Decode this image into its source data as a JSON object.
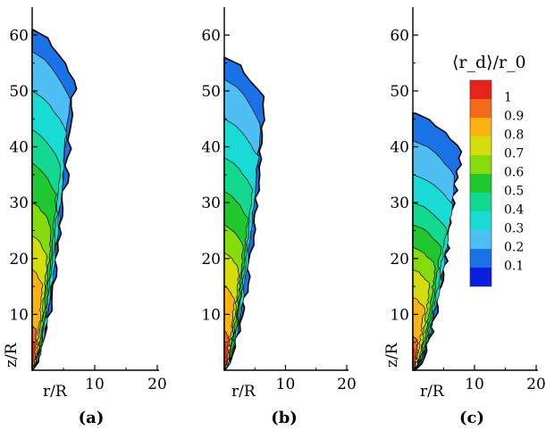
{
  "chart_data": {
    "type": "heatmap",
    "colorbar": {
      "title": "⟨r_d⟩/r_0",
      "levels": [
        1,
        0.9,
        0.8,
        0.7,
        0.6,
        0.5,
        0.4,
        0.3,
        0.2,
        0.1
      ],
      "level_labels": [
        "1",
        "0.9",
        "0.8",
        "0.7",
        "0.6",
        "0.5",
        "0.4",
        "0.3",
        "0.2",
        "0.1"
      ],
      "colors": [
        "#e8231a",
        "#f46a1c",
        "#f9b20f",
        "#d5dc0b",
        "#86dc0b",
        "#1fc82e",
        "#13d890",
        "#19dbd6",
        "#4dbff5",
        "#1a72e6",
        "#0a1ee0"
      ]
    },
    "panels": [
      {
        "caption": "(a)",
        "xlabel": "r/R",
        "ylabel": "z/R",
        "x_ticks": [
          "10",
          "20"
        ],
        "y_ticks": [
          "10",
          "20",
          "30",
          "40",
          "50",
          "60"
        ],
        "xlim": [
          0,
          20
        ],
        "ylim": [
          0,
          65
        ],
        "jet_tip_z": 61,
        "contour_boundaries": [
          {
            "level": 0.9,
            "z_top": 8,
            "r_max": 0.8
          },
          {
            "level": 0.8,
            "z_top": 18,
            "r_max": 1.8
          },
          {
            "level": 0.7,
            "z_top": 24,
            "r_max": 2.6
          },
          {
            "level": 0.6,
            "z_top": 30,
            "r_max": 3.4
          },
          {
            "level": 0.5,
            "z_top": 37,
            "r_max": 4.2
          },
          {
            "level": 0.4,
            "z_top": 43,
            "r_max": 5.0
          },
          {
            "level": 0.3,
            "z_top": 50,
            "r_max": 6.0
          },
          {
            "level": 0.2,
            "z_top": 57,
            "r_max": 6.5
          }
        ]
      },
      {
        "caption": "(b)",
        "xlabel": "r/R",
        "ylabel": "",
        "x_ticks": [
          "10",
          "20"
        ],
        "y_ticks": [
          "10",
          "20",
          "30",
          "40",
          "50",
          "60"
        ],
        "xlim": [
          0,
          20
        ],
        "ylim": [
          0,
          65
        ],
        "jet_tip_z": 56,
        "contour_boundaries": [
          {
            "level": 0.9,
            "z_top": 7,
            "r_max": 0.8
          },
          {
            "level": 0.8,
            "z_top": 15,
            "r_max": 1.8
          },
          {
            "level": 0.7,
            "z_top": 21,
            "r_max": 2.6
          },
          {
            "level": 0.6,
            "z_top": 26,
            "r_max": 3.4
          },
          {
            "level": 0.5,
            "z_top": 32,
            "r_max": 4.2
          },
          {
            "level": 0.4,
            "z_top": 38,
            "r_max": 5.0
          },
          {
            "level": 0.3,
            "z_top": 45,
            "r_max": 6.0
          },
          {
            "level": 0.2,
            "z_top": 52,
            "r_max": 6.5
          }
        ]
      },
      {
        "caption": "(c)",
        "xlabel": "r/R",
        "ylabel": "z/R",
        "x_ticks": [
          "10",
          "20"
        ],
        "y_ticks": [
          "10",
          "20",
          "30",
          "40",
          "50",
          "60"
        ],
        "xlim": [
          0,
          20
        ],
        "ylim": [
          0,
          65
        ],
        "jet_tip_z": 46,
        "contour_boundaries": [
          {
            "level": 0.9,
            "z_top": 6,
            "r_max": 0.9
          },
          {
            "level": 0.8,
            "z_top": 13,
            "r_max": 2.0
          },
          {
            "level": 0.7,
            "z_top": 18,
            "r_max": 3.0
          },
          {
            "level": 0.6,
            "z_top": 22,
            "r_max": 4.0
          },
          {
            "level": 0.5,
            "z_top": 26,
            "r_max": 5.0
          },
          {
            "level": 0.4,
            "z_top": 30,
            "r_max": 6.0
          },
          {
            "level": 0.3,
            "z_top": 35,
            "r_max": 7.0
          },
          {
            "level": 0.2,
            "z_top": 41,
            "r_max": 7.5
          }
        ]
      }
    ]
  }
}
